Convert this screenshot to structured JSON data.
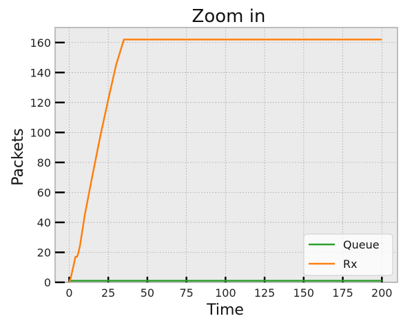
{
  "chart_data": {
    "type": "line",
    "title": "Zoom in",
    "xlabel": "Time",
    "ylabel": "Packets",
    "xlim": [
      -9,
      210
    ],
    "ylim": [
      0,
      170
    ],
    "xticks": [
      0,
      25,
      50,
      75,
      100,
      125,
      150,
      175,
      200
    ],
    "yticks": [
      0,
      20,
      40,
      60,
      80,
      100,
      120,
      140,
      160
    ],
    "grid": true,
    "legend_position": "bottom-right",
    "series": [
      {
        "name": "Queue",
        "color": "#2ca02c",
        "x": [
          0,
          200
        ],
        "y": [
          1,
          1
        ]
      },
      {
        "name": "Rx",
        "color": "#ff7f0e",
        "x": [
          0,
          1,
          3,
          4,
          5,
          6,
          7,
          10,
          15,
          20,
          25,
          30,
          35,
          100,
          200
        ],
        "y": [
          0,
          3,
          12,
          17,
          17,
          20,
          25,
          45,
          72,
          98,
          122,
          145,
          162,
          162,
          162
        ]
      }
    ]
  }
}
